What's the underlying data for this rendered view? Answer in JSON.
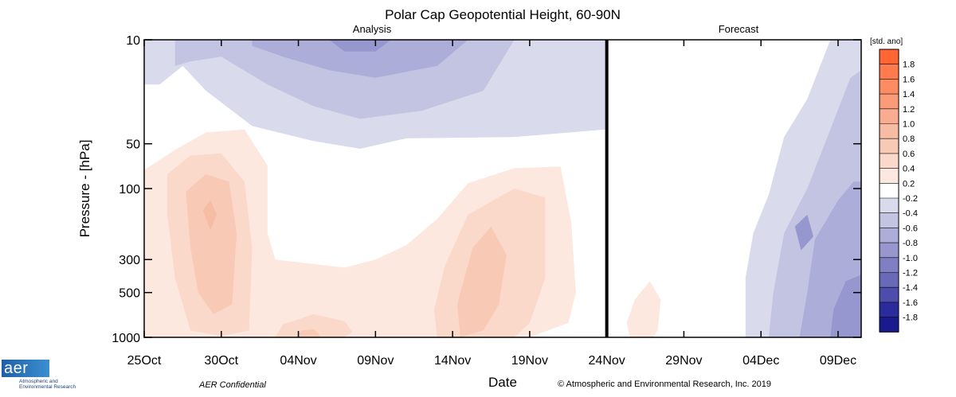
{
  "chart_data": {
    "type": "heatmap",
    "title": "Polar Cap Geopotential Height, 60-90N",
    "subtitle_left": "Analysis",
    "subtitle_right": "Forecast",
    "xlabel": "Date",
    "ylabel": "Pressure - [hPa]",
    "x_ticks": [
      "25Oct",
      "30Oct",
      "04Nov",
      "09Nov",
      "14Nov",
      "19Nov",
      "24Nov",
      "29Nov",
      "04Dec",
      "09Dec"
    ],
    "x_tick_days": [
      0,
      5,
      10,
      15,
      20,
      25,
      30,
      35,
      40,
      45
    ],
    "x_range_days": [
      0,
      46.5
    ],
    "analysis_end_day": 30,
    "y_ticks": [
      "10",
      "50",
      "100",
      "300",
      "500",
      "1000"
    ],
    "y_tick_values": [
      10,
      50,
      100,
      300,
      500,
      1000
    ],
    "y_scale": "log",
    "y_range": [
      10,
      1000
    ],
    "colorbar_label": "[std. ano]",
    "levels": [
      "1.8",
      "1.6",
      "1.4",
      "1.2",
      "1.0",
      "0.8",
      "0.6",
      "0.4",
      "0.2",
      "-0.2",
      "-0.4",
      "-0.6",
      "-0.8",
      "-1.0",
      "-1.2",
      "-1.4",
      "-1.6",
      "-1.8"
    ],
    "level_colors": [
      "#ff6633",
      "#ff7a4d",
      "#fe8c63",
      "#fb9c79",
      "#f9ac8f",
      "#f7bca4",
      "#f8cab6",
      "#fad8ca",
      "#fde8df",
      "#ffffff",
      "#d9dbec",
      "#c2c4e2",
      "#acadd8",
      "#9697ce",
      "#7f80c3",
      "#6869b7",
      "#4d4eab",
      "#2b2c9c",
      "#1a1a8e"
    ],
    "colorbar_segments": [
      "#ff6633",
      "#ff7a4d",
      "#fe8c63",
      "#fb9c79",
      "#f9ac8f",
      "#f7bca4",
      "#f8cab6",
      "#fad8ca",
      "#fde8df",
      "#ffffff",
      "#d9dbec",
      "#c2c4e2",
      "#acadd8",
      "#9697ce",
      "#7f80c3",
      "#6869b7",
      "#4d4eab",
      "#2b2c9c",
      "#1a1a8e"
    ],
    "anomaly_regions": [
      {
        "name": "strat-neg-outer",
        "value": -0.3,
        "points": [
          [
            0,
            10
          ],
          [
            30,
            10
          ],
          [
            30,
            40
          ],
          [
            24,
            45
          ],
          [
            17,
            46
          ],
          [
            14,
            54
          ],
          [
            11,
            48
          ],
          [
            7,
            38
          ],
          [
            4,
            22
          ],
          [
            2.5,
            15
          ],
          [
            1,
            20
          ],
          [
            0,
            20
          ]
        ]
      },
      {
        "name": "strat-neg-2",
        "value": -0.5,
        "points": [
          [
            2,
            10
          ],
          [
            24,
            10
          ],
          [
            22,
            22
          ],
          [
            18,
            30
          ],
          [
            14,
            34
          ],
          [
            11,
            28
          ],
          [
            8,
            20
          ],
          [
            5,
            13
          ],
          [
            3,
            14
          ],
          [
            2,
            15
          ]
        ]
      },
      {
        "name": "strat-neg-3",
        "value": -0.7,
        "points": [
          [
            7,
            10
          ],
          [
            21,
            10
          ],
          [
            19,
            15
          ],
          [
            15,
            18
          ],
          [
            12,
            16
          ],
          [
            9,
            13
          ],
          [
            7,
            11
          ]
        ]
      },
      {
        "name": "strat-neg-4",
        "value": -0.9,
        "points": [
          [
            12,
            10
          ],
          [
            16,
            10
          ],
          [
            15,
            12
          ],
          [
            13,
            12
          ]
        ]
      },
      {
        "name": "strat-pos-early",
        "value": 0.3,
        "points": [
          [
            0,
            75
          ],
          [
            2,
            55
          ],
          [
            4,
            42
          ],
          [
            6.5,
            40
          ],
          [
            8,
            70
          ],
          [
            8,
            200
          ],
          [
            8.5,
            300
          ],
          [
            13,
            340
          ],
          [
            15,
            300
          ],
          [
            17,
            240
          ],
          [
            19,
            160
          ],
          [
            21,
            92
          ],
          [
            24,
            73
          ],
          [
            27,
            71
          ],
          [
            27.7,
            170
          ],
          [
            28,
            500
          ],
          [
            27.5,
            800
          ],
          [
            25,
            1000
          ],
          [
            0,
            1000
          ]
        ]
      },
      {
        "name": "pos-early-2",
        "value": 0.5,
        "points": [
          [
            1.5,
            80
          ],
          [
            3,
            60
          ],
          [
            5,
            58
          ],
          [
            6.5,
            90
          ],
          [
            7,
            250
          ],
          [
            6.8,
            900
          ],
          [
            5,
            980
          ],
          [
            3,
            900
          ],
          [
            2,
            400
          ],
          [
            1.5,
            150
          ]
        ]
      },
      {
        "name": "pos-early-3",
        "value": 0.7,
        "points": [
          [
            2.7,
            105
          ],
          [
            4,
            80
          ],
          [
            5.5,
            90
          ],
          [
            6,
            200
          ],
          [
            5.7,
            600
          ],
          [
            4.5,
            700
          ],
          [
            3.5,
            500
          ],
          [
            3,
            250
          ]
        ]
      },
      {
        "name": "pos-early-4",
        "value": 0.9,
        "points": [
          [
            3.8,
            140
          ],
          [
            4.3,
            120
          ],
          [
            4.7,
            150
          ],
          [
            4.3,
            190
          ]
        ]
      },
      {
        "name": "pos-mid-1",
        "value": 0.3,
        "points": [
          [
            18,
            1000
          ],
          [
            16.5,
            700
          ],
          [
            17,
            400
          ],
          [
            18.5,
            220
          ],
          [
            20.5,
            130
          ],
          [
            23,
            82
          ],
          [
            26.3,
            82
          ],
          [
            27,
            200
          ],
          [
            26.7,
            500
          ],
          [
            25.5,
            900
          ],
          [
            24.5,
            1000
          ]
        ]
      },
      {
        "name": "pos-mid-2",
        "value": 0.5,
        "points": [
          [
            19,
            1000
          ],
          [
            18.8,
            650
          ],
          [
            19.5,
            330
          ],
          [
            21,
            150
          ],
          [
            24,
            100
          ],
          [
            26,
            115
          ],
          [
            26,
            400
          ],
          [
            25,
            800
          ],
          [
            24,
            1000
          ]
        ]
      },
      {
        "name": "pos-mid-3",
        "value": 0.7,
        "points": [
          [
            20.5,
            1000
          ],
          [
            20.3,
            600
          ],
          [
            21.3,
            250
          ],
          [
            22.5,
            180
          ],
          [
            23.5,
            280
          ],
          [
            23,
            600
          ],
          [
            22,
            900
          ]
        ]
      },
      {
        "name": "pos-low-1",
        "value": 0.5,
        "points": [
          [
            8.5,
            1000
          ],
          [
            9,
            820
          ],
          [
            11,
            700
          ],
          [
            13,
            780
          ],
          [
            13.5,
            920
          ],
          [
            13,
            1000
          ]
        ]
      },
      {
        "name": "pos-low-2",
        "value": 0.7,
        "points": [
          [
            9.8,
            1000
          ],
          [
            10.2,
            900
          ],
          [
            11,
            880
          ],
          [
            11.5,
            1000
          ]
        ]
      },
      {
        "name": "pos-fc-1",
        "value": 0.3,
        "points": [
          [
            31.5,
            1000
          ],
          [
            31.3,
            800
          ],
          [
            31.8,
            560
          ],
          [
            32.8,
            420
          ],
          [
            33.5,
            560
          ],
          [
            33.3,
            900
          ],
          [
            33,
            1000
          ]
        ]
      },
      {
        "name": "fc-neg-1",
        "value": -0.3,
        "points": [
          [
            39,
            1000
          ],
          [
            39,
            400
          ],
          [
            39.5,
            200
          ],
          [
            40.5,
            110
          ],
          [
            41.5,
            45
          ],
          [
            43,
            25
          ],
          [
            44.5,
            10
          ],
          [
            46.5,
            10
          ],
          [
            46.5,
            1000
          ]
        ]
      },
      {
        "name": "fc-neg-2",
        "value": -0.5,
        "points": [
          [
            40.5,
            1000
          ],
          [
            40.8,
            500
          ],
          [
            41.5,
            200
          ],
          [
            43,
            100
          ],
          [
            44.5,
            40
          ],
          [
            45.8,
            18
          ],
          [
            46.5,
            16
          ],
          [
            46.5,
            1000
          ]
        ]
      },
      {
        "name": "fc-neg-3",
        "value": -0.7,
        "points": [
          [
            42.5,
            1000
          ],
          [
            43,
            500
          ],
          [
            43.5,
            220
          ],
          [
            45,
            120
          ],
          [
            46,
            90
          ],
          [
            46.5,
            90
          ],
          [
            46.5,
            1000
          ]
        ]
      },
      {
        "name": "fc-neg-4",
        "value": -0.9,
        "points": [
          [
            44.5,
            1000
          ],
          [
            44.7,
            650
          ],
          [
            45.5,
            420
          ],
          [
            46.5,
            380
          ],
          [
            46.5,
            1000
          ]
        ]
      },
      {
        "name": "fc-neg-5",
        "value": -0.9,
        "points": [
          [
            42.2,
            180
          ],
          [
            43,
            150
          ],
          [
            43.4,
            210
          ],
          [
            42.6,
            260
          ]
        ]
      }
    ]
  },
  "footer": {
    "confidential": "AER Confidential",
    "copyright": "© Atmospheric and Environmental Research, Inc. 2019"
  },
  "logo": {
    "mark": "aer",
    "line1": "Atmospheric and",
    "line2": "Environmental Research"
  }
}
